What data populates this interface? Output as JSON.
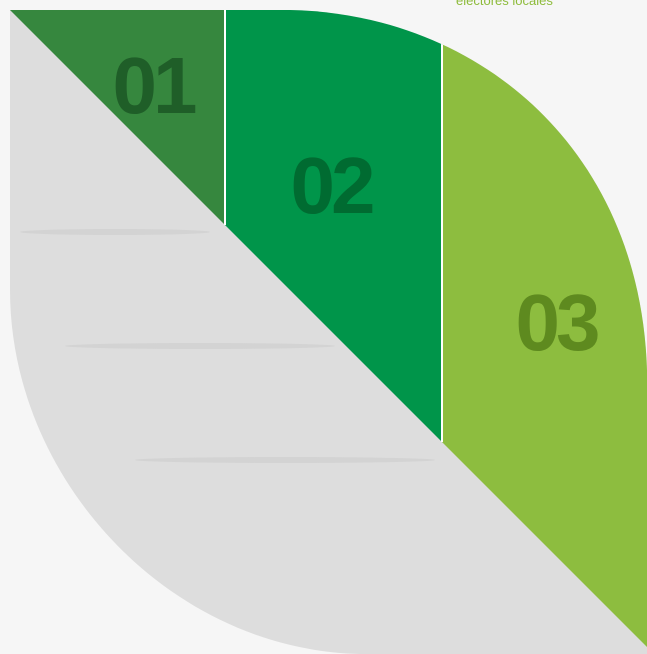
{
  "caption": "electores locales",
  "segments": [
    {
      "number": "01",
      "fill": "#36873e",
      "text_color": "#1f5e28"
    },
    {
      "number": "02",
      "fill": "#00954a",
      "text_color": "#006b31"
    },
    {
      "number": "03",
      "fill": "#8dbd3f",
      "text_color": "#5e8a1f"
    }
  ],
  "leaf_color": "#dddddd",
  "background": "#f6f6f6"
}
